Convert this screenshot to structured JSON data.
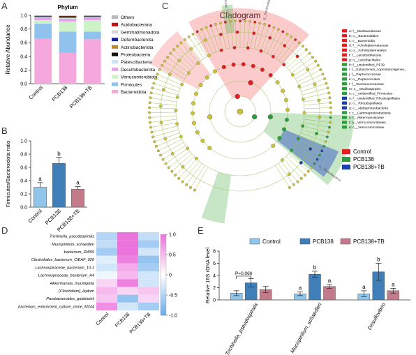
{
  "panels": {
    "a": "A",
    "b": "B",
    "c": "C",
    "d": "D",
    "e": "E"
  },
  "chart_data": [
    {
      "id": "A",
      "type": "bar",
      "stacked": true,
      "title": "Phylum",
      "ylabel": "Relative Abundance",
      "ylim": [
        0,
        1.0
      ],
      "yticks": [
        "0.0",
        "0.2",
        "0.4",
        "0.6",
        "0.8",
        "1.0"
      ],
      "categories": [
        "Control",
        "PCB138",
        "PCB138+TB"
      ],
      "series": [
        {
          "name": "Bacteroidota",
          "color": "#f5a8dc",
          "values": [
            0.66,
            0.45,
            0.65
          ]
        },
        {
          "name": "Firmicutes",
          "color": "#8fc3ee",
          "values": [
            0.22,
            0.31,
            0.11
          ]
        },
        {
          "name": "Verrucomicrobiota",
          "color": "#cdf2c8",
          "values": [
            0.05,
            0.15,
            0.17
          ]
        },
        {
          "name": "Desulfobacterota",
          "color": "#e6a3ea",
          "values": [
            0.03,
            0.04,
            0.03
          ]
        },
        {
          "name": "Patescibacteria",
          "color": "#cbe3f4",
          "values": [
            0.015,
            0.015,
            0.015
          ]
        },
        {
          "name": "Proteobacteria",
          "color": "#111111",
          "values": [
            0.01,
            0.01,
            0.01
          ]
        },
        {
          "name": "Actinobacteriota",
          "color": "#b5892c",
          "values": [
            0.005,
            0.005,
            0.005
          ]
        },
        {
          "name": "Deferribacterota",
          "color": "#1a2396",
          "values": [
            0.003,
            0.01,
            0.003
          ]
        },
        {
          "name": "Gemmatimonadota",
          "color": "#d7d7d7",
          "values": [
            0.002,
            0.002,
            0.002
          ]
        },
        {
          "name": "Acidobacteriota",
          "color": "#c01414",
          "values": [
            0.002,
            0.002,
            0.002
          ]
        },
        {
          "name": "Others",
          "color": "#bbbbbb",
          "values": [
            0.003,
            0.003,
            0.003
          ]
        }
      ],
      "legend_order": [
        "Others",
        "Acidobacteriota",
        "Gemmatimonadota",
        "Deferribacterota",
        "Actinobacteriota",
        "Proteobacteria",
        "Patescibacteria",
        "Desulfobacterota",
        "Verrucomicrobiota",
        "Firmicutes",
        "Bacteroidota"
      ]
    },
    {
      "id": "B",
      "type": "bar",
      "ylabel": "Firmicutes/Bacteroidota ratio",
      "ylim": [
        0,
        1.0
      ],
      "yticks": [
        "0.0",
        "0.2",
        "0.4",
        "0.6",
        "0.8",
        "1.0"
      ],
      "categories": [
        "Control",
        "PCB138",
        "PCB138+TB"
      ],
      "values": [
        0.3,
        0.66,
        0.27
      ],
      "errors": [
        0.07,
        0.09,
        0.04
      ],
      "colors": [
        "#8fc6ea",
        "#3f7eb6",
        "#c37b8b"
      ],
      "letters": [
        "a",
        "b",
        "a"
      ]
    },
    {
      "id": "C",
      "type": "cladogram",
      "title": "Cladogram",
      "legend_groups": [
        {
          "name": "Control",
          "color": "#e02020"
        },
        {
          "name": "PCB138",
          "color": "#2e9e3c"
        },
        {
          "name": "PCB138+TB",
          "color": "#1c3fae"
        }
      ],
      "taxa": [
        {
          "label": "a: f__Muribaculaceae",
          "color": "#e02020"
        },
        {
          "label": "b: o__Bacteroidales",
          "color": "#e02020"
        },
        {
          "label": "c: c__Bacteroidia",
          "color": "#e02020"
        },
        {
          "label": "d: f__Acholeplasmataceae",
          "color": "#e02020"
        },
        {
          "label": "e: o__Acholeplasmatales",
          "color": "#e02020"
        },
        {
          "label": "f: f__Lactobacillaceae",
          "color": "#e02020"
        },
        {
          "label": "g: o__Lactobacillales",
          "color": "#e02020"
        },
        {
          "label": "h: f__unidentified_RF39",
          "color": "#2e9e3c"
        },
        {
          "label": "i: f__Eubacterium_coprostanoligenes_",
          "color": "#2e9e3c"
        },
        {
          "label": "j: f__Peptococcaceae",
          "color": "#2e9e3c"
        },
        {
          "label": "k: o__Peptococcales",
          "color": "#2e9e3c"
        },
        {
          "label": "l: f__Ruminococcaceae",
          "color": "#2e9e3c"
        },
        {
          "label": "m: o__Oscillospirales",
          "color": "#2e9e3c"
        },
        {
          "label": "n: c__unidentified_Firmicutes",
          "color": "#2e9e3c"
        },
        {
          "label": "o: f__unidentified_Rhodospirillales",
          "color": "#1c3fae"
        },
        {
          "label": "p: o__Rhodospirillales",
          "color": "#1c3fae"
        },
        {
          "label": "q: c__Alphaproteobacteria",
          "color": "#1c3fae"
        },
        {
          "label": "r: c__Gammaproteobacteria",
          "color": "#2e9e3c"
        },
        {
          "label": "s: f__Akkermansiaceae",
          "color": "#2e9e3c"
        },
        {
          "label": "t: o__Verrucomicrobiales",
          "color": "#2e9e3c"
        },
        {
          "label": "u: c__Verrucomicrobiae",
          "color": "#2e9e3c"
        }
      ],
      "sector_labels": [
        "g__Bacteroidales",
        "p__Verrucomicrobiota",
        "p__Proteobacteria"
      ]
    },
    {
      "id": "D",
      "type": "heatmap",
      "columns": [
        "Control",
        "PCB138",
        "PCB138+TB"
      ],
      "rows": [
        "Trichinella_pseudospiralis",
        "Mucispirillum_schaedleri",
        "bacterium_DW59",
        "Clostridiales_bacterium_CIEAF_020",
        "Lachnospiraceae_bacterium_10-1",
        "Lachnospiraceae_bacterium_A4",
        "Akkermansia_muciniphila",
        "[Clostridium]_leptum",
        "Parabacteroides_goldsteinii",
        "bacterium_enrichment_culture_clone_M244"
      ],
      "values": [
        [
          -0.5,
          1.0,
          -0.4
        ],
        [
          -0.4,
          1.1,
          -0.6
        ],
        [
          -0.6,
          1.0,
          -0.3
        ],
        [
          -0.2,
          0.9,
          -0.7
        ],
        [
          -0.3,
          0.6,
          -0.6
        ],
        [
          -0.1,
          0.5,
          -0.3
        ],
        [
          0.3,
          0.9,
          -0.3
        ],
        [
          0.5,
          0.3,
          0.4
        ],
        [
          0.4,
          -0.7,
          0.3
        ],
        [
          0.8,
          -0.3,
          -0.6
        ]
      ],
      "colorbar_ticks": [
        "1.0",
        "0.5",
        "0",
        "-0.5",
        "-1.0"
      ],
      "color_range": [
        -1.0,
        1.0
      ]
    },
    {
      "id": "E",
      "type": "bar",
      "ylabel": "Relative 16S rDNA level",
      "ylim": [
        0,
        8
      ],
      "yticks": [
        "0",
        "2",
        "4",
        "6",
        "8"
      ],
      "categories": [
        "Trichinella_pseudospiralis",
        "Mucispirillum_schaedleri",
        "Desulfovibrio"
      ],
      "series": [
        {
          "name": "Control",
          "color": "#8fc6ea",
          "values": [
            1.1,
            1.0,
            1.0
          ],
          "errors": [
            0.4,
            0.3,
            0.5
          ],
          "letters": [
            "",
            "a",
            "a"
          ]
        },
        {
          "name": "PCB138",
          "color": "#3f7eb6",
          "values": [
            2.8,
            4.2,
            4.6
          ],
          "errors": [
            0.7,
            0.5,
            1.4
          ],
          "letters": [
            "",
            "b",
            "b"
          ]
        },
        {
          "name": "PCB138+TB",
          "color": "#c37b8b",
          "values": [
            1.7,
            2.2,
            1.5
          ],
          "errors": [
            0.5,
            0.3,
            0.4
          ],
          "letters": [
            "",
            "a",
            "a"
          ]
        }
      ],
      "annotation": "P=0.066",
      "legend_placement": "top"
    }
  ]
}
